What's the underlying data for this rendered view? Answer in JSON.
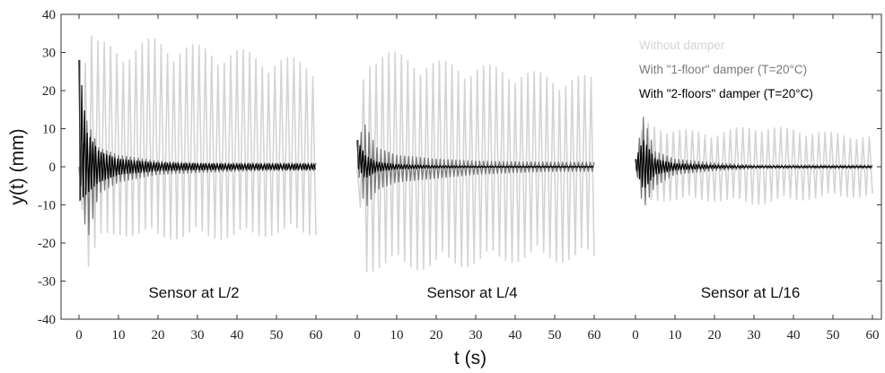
{
  "chart_data": {
    "type": "line",
    "xlabel": "t (s)",
    "ylabel": "y(t) (mm)",
    "ylim": [
      -40,
      40
    ],
    "yticks": [
      40,
      30,
      20,
      10,
      0,
      -10,
      -20,
      -30,
      -40
    ],
    "xticks": [
      0,
      10,
      20,
      30,
      40,
      50,
      60
    ],
    "xlim_per_panel": [
      0,
      60
    ],
    "grid": false,
    "legend_position": "top-right",
    "legend": [
      {
        "label": "Without damper",
        "color": "#d4d4d4"
      },
      {
        "label": "With \"1-floor\" damper (T=20°C)",
        "color": "#7a7a7a"
      },
      {
        "label": "With \"2-floors\" damper (T=20°C)",
        "color": "#000000"
      }
    ],
    "panels": [
      {
        "label": "Sensor at L/2",
        "series": [
          {
            "name": "Without damper",
            "t": [
              0,
              2,
              5,
              10,
              20,
              30,
              40,
              50,
              60
            ],
            "upper": [
              0,
              38,
              33,
              32,
              34,
              32,
              31,
              29,
              28
            ],
            "lower": [
              0,
              -28,
              -21,
              -18,
              -19,
              -19,
              -19,
              -18,
              -18
            ]
          },
          {
            "name": "With \"1-floor\" damper (T=20°C)",
            "t": [
              0,
              2,
              5,
              10,
              20,
              30,
              40,
              50,
              60
            ],
            "upper": [
              0,
              12,
              5,
              3,
              1.5,
              1,
              1,
              1,
              1
            ],
            "lower": [
              0,
              -20,
              -7,
              -4,
              -2,
              -1.5,
              -1.2,
              -1,
              -1
            ]
          },
          {
            "name": "With \"2-floors\" damper (T=20°C)",
            "t": [
              0,
              2,
              5,
              10,
              20,
              30,
              40,
              50,
              60
            ],
            "upper": [
              28,
              9,
              4,
              2,
              1,
              0.8,
              0.7,
              0.7,
              0.7
            ],
            "lower": [
              -9,
              -7,
              -4,
              -2,
              -1,
              -0.8,
              -0.7,
              -0.7,
              -0.7
            ]
          }
        ]
      },
      {
        "label": "Sensor at L/4",
        "series": [
          {
            "name": "Without damper",
            "t": [
              0,
              2,
              5,
              10,
              20,
              30,
              40,
              50,
              60
            ],
            "upper": [
              0,
              31,
              31,
              30,
              28,
              27,
              26,
              24,
              24
            ],
            "lower": [
              0,
              -28,
              -27,
              -27,
              -27,
              -26,
              -25,
              -25,
              -25
            ]
          },
          {
            "name": "With \"1-floor\" damper (T=20°C)",
            "t": [
              0,
              2,
              5,
              10,
              20,
              30,
              40,
              50,
              60
            ],
            "upper": [
              7,
              11,
              5,
              3,
              2,
              1.5,
              1.3,
              1.2,
              1.2
            ],
            "lower": [
              0,
              -11,
              -6,
              -4,
              -3,
              -2,
              -1.5,
              -1.2,
              -1.2
            ]
          },
          {
            "name": "With \"2-floors\" damper (T=20°C)",
            "t": [
              0,
              2,
              5,
              10,
              20,
              30,
              40,
              50,
              60
            ],
            "upper": [
              7,
              3,
              1.2,
              0.6,
              0.3,
              0.2,
              0.2,
              0.2,
              0.2
            ],
            "lower": [
              0,
              -3,
              -1.2,
              -0.6,
              -0.3,
              -0.2,
              -0.2,
              -0.2,
              -0.2
            ]
          }
        ]
      },
      {
        "label": "Sensor at L/16",
        "series": [
          {
            "name": "Without damper",
            "t": [
              0,
              2,
              5,
              10,
              20,
              30,
              40,
              50,
              60
            ],
            "upper": [
              0,
              12,
              11,
              10,
              9,
              11,
              10,
              9,
              8
            ],
            "lower": [
              0,
              -10,
              -9,
              -9,
              -9,
              -10,
              -9,
              -8,
              -8
            ]
          },
          {
            "name": "With \"1-floor\" damper (T=20°C)",
            "t": [
              0,
              2,
              5,
              10,
              20,
              30,
              40,
              50,
              60
            ],
            "upper": [
              2,
              13,
              4,
              2,
              1,
              0.5,
              0.5,
              0.5,
              0.5
            ],
            "lower": [
              0,
              -11,
              -5,
              -2,
              -1,
              -0.5,
              -0.5,
              -0.5,
              -0.5
            ]
          },
          {
            "name": "With \"2-floors\" damper (T=20°C)",
            "t": [
              0,
              2,
              5,
              10,
              20,
              30,
              40,
              50,
              60
            ],
            "upper": [
              2,
              7,
              2,
              0.8,
              0.4,
              0.2,
              0.2,
              0.2,
              0.2
            ],
            "lower": [
              0,
              -6,
              -2,
              -0.8,
              -0.4,
              -0.2,
              -0.2,
              -0.2,
              -0.2
            ]
          }
        ]
      }
    ]
  }
}
